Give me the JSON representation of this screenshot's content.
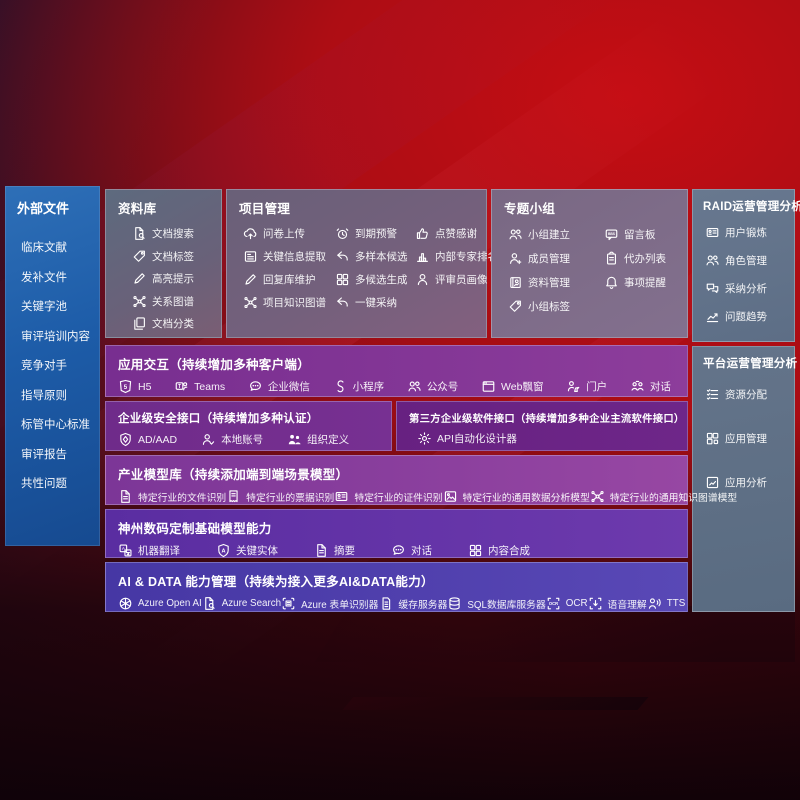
{
  "slide": {
    "colors": {
      "background_red": "#b30d13",
      "background_dark": "#26060f",
      "sidebar_blue": "#1d5ca8",
      "panel_slate": "#657187",
      "panel_mauve": "#7d6a86",
      "row_purple": "#7d3196",
      "row_violet": "#602fa5",
      "row_indigo": "#4b3aa8"
    }
  },
  "sidebar": {
    "title": "外部文件",
    "items": [
      {
        "label": "临床文献"
      },
      {
        "label": "发补文件"
      },
      {
        "label": "关键字池"
      },
      {
        "label": "审评培训内容"
      },
      {
        "label": "竞争对手"
      },
      {
        "label": "指导原则"
      },
      {
        "label": "标管中心标准"
      },
      {
        "label": "审评报告"
      },
      {
        "label": "共性问题"
      }
    ]
  },
  "panels": {
    "library": {
      "title": "资料库",
      "items": [
        {
          "icon": "doc-search",
          "label": "文档搜索"
        },
        {
          "icon": "tag",
          "label": "文档标签"
        },
        {
          "icon": "pen",
          "label": "高亮提示"
        },
        {
          "icon": "network",
          "label": "关系图谱"
        },
        {
          "icon": "docs",
          "label": "文档分类"
        }
      ]
    },
    "project": {
      "title": "项目管理",
      "items": [
        {
          "icon": "cloud-up",
          "label": "问卷上传"
        },
        {
          "icon": "alarm",
          "label": "到期预警"
        },
        {
          "icon": "thumb",
          "label": "点赞感谢"
        },
        {
          "icon": "frame",
          "label": "关键信息提取"
        },
        {
          "icon": "reply",
          "label": "多样本候选"
        },
        {
          "icon": "bars",
          "label": "内部专家排名"
        },
        {
          "icon": "pen",
          "label": "回复库维护"
        },
        {
          "icon": "grid",
          "label": "多候选生成"
        },
        {
          "icon": "person",
          "label": "评审员画像"
        },
        {
          "icon": "network",
          "label": "项目知识图谱"
        },
        {
          "icon": "reply",
          "label": "一键采纳"
        }
      ]
    },
    "group": {
      "title": "专题小组",
      "items": [
        {
          "icon": "people",
          "label": "小组建立"
        },
        {
          "icon": "bbs",
          "label": "留言板"
        },
        {
          "icon": "person-add",
          "label": "成员管理"
        },
        {
          "icon": "clipboard",
          "label": "代办列表"
        },
        {
          "icon": "album",
          "label": "资料管理"
        },
        {
          "icon": "bell",
          "label": "事项提醒"
        },
        {
          "icon": "tag",
          "label": "小组标签"
        }
      ]
    },
    "raid": {
      "title": "RAID运营管理分析",
      "items": [
        {
          "icon": "id-card",
          "label": "用户锻炼"
        },
        {
          "icon": "people",
          "label": "角色管理"
        },
        {
          "icon": "chat-qa",
          "label": "采纳分析"
        },
        {
          "icon": "trend",
          "label": "问题趋势"
        }
      ]
    },
    "platform": {
      "title": "平台运营管理分析",
      "items": [
        {
          "icon": "list-check",
          "label": "资源分配"
        },
        {
          "icon": "blocks",
          "label": "应用管理"
        },
        {
          "icon": "app-chart",
          "label": "应用分析"
        }
      ]
    }
  },
  "rows": {
    "interaction": {
      "title": "应用交互（持续增加多种客户端）",
      "items": [
        {
          "icon": "h5",
          "label": "H5"
        },
        {
          "icon": "teams",
          "label": "Teams"
        },
        {
          "icon": "chat",
          "label": "企业微信"
        },
        {
          "icon": "mini-s",
          "label": "小程序"
        },
        {
          "icon": "people",
          "label": "公众号"
        },
        {
          "icon": "window",
          "label": "Web飘窗"
        },
        {
          "icon": "portal",
          "label": "门户"
        },
        {
          "icon": "dialog",
          "label": "对话"
        }
      ]
    },
    "security": {
      "title": "企业级安全接口（持续增加多种认证）",
      "items": [
        {
          "icon": "shield-ad",
          "label": "AD/AAD"
        },
        {
          "icon": "person-check",
          "label": "本地账号"
        },
        {
          "icon": "people-org",
          "label": "组织定义"
        }
      ]
    },
    "thirdparty": {
      "title": "第三方企业级软件接口（持续增加多种企业主流软件接口）",
      "items": [
        {
          "icon": "gear",
          "label": "API自动化设计器"
        }
      ]
    },
    "industry": {
      "title": "产业模型库（持续添加端到端场景模型）",
      "items": [
        {
          "icon": "doc",
          "label": "特定行业的文件识别"
        },
        {
          "icon": "receipt",
          "label": "特定行业的票据识别"
        },
        {
          "icon": "id-card",
          "label": "特定行业的证件识别"
        },
        {
          "icon": "image",
          "label": "特定行业的通用数据分析模型"
        },
        {
          "icon": "network",
          "label": "特定行业的通用知识图谱模型"
        }
      ]
    },
    "digital_china": {
      "title": "神州数码定制基础模型能力",
      "items": [
        {
          "icon": "translate",
          "label": "机器翻译"
        },
        {
          "icon": "shield-a",
          "label": "关键实体"
        },
        {
          "icon": "doc",
          "label": "摘要"
        },
        {
          "icon": "chat",
          "label": "对话"
        },
        {
          "icon": "grid",
          "label": "内容合成"
        }
      ]
    },
    "ai_data": {
      "title": "AI & DATA 能力管理（持续为接入更多AI&DATA能力）",
      "items": [
        {
          "icon": "openai",
          "label": "Azure Open AI"
        },
        {
          "icon": "doc-search",
          "label": "Azure Search"
        },
        {
          "icon": "scan-form",
          "label": "Azure 表单识别器"
        },
        {
          "icon": "server",
          "label": "缓存服务器"
        },
        {
          "icon": "db",
          "label": "SQL数据库服务器"
        },
        {
          "icon": "ocr",
          "label": "OCR"
        },
        {
          "icon": "speech",
          "label": "语音理解"
        },
        {
          "icon": "tts",
          "label": "TTS"
        }
      ]
    }
  }
}
